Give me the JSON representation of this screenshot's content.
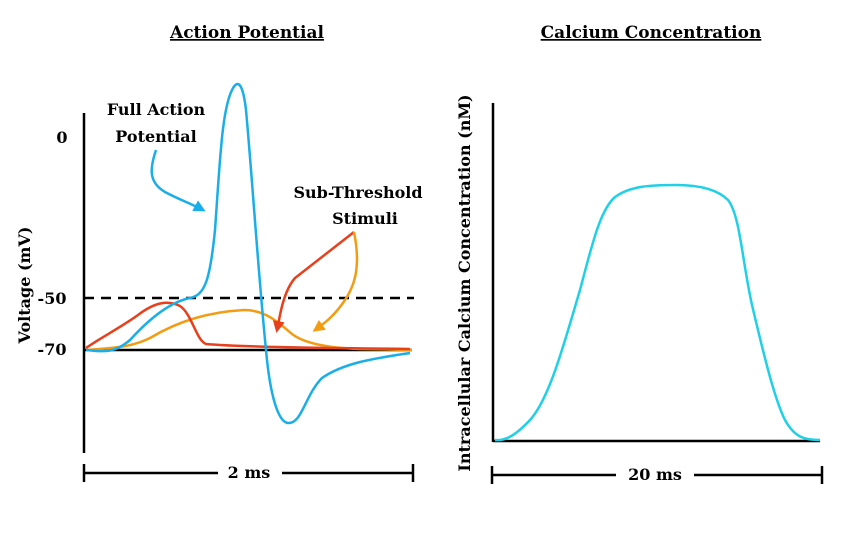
{
  "left_panel": {
    "title": "Action Potential",
    "y_axis_label": "Voltage (mV)",
    "ticks": [
      "0",
      "-50",
      "-70"
    ],
    "scale_bar_label": "2 ms",
    "annotation_full": [
      "Full Action",
      "Potential"
    ],
    "annotation_sub": [
      "Sub-Threshold",
      "Stimuli"
    ],
    "colors": {
      "full_ap": "#1aaee8",
      "sub_red": "#e8401c",
      "sub_orange": "#f39c12",
      "threshold": "#000000"
    }
  },
  "right_panel": {
    "title": "Calcium Concentration",
    "y_axis_label": "Intracellular Calcium Concentration (nM)",
    "scale_bar_label": "20 ms",
    "colors": {
      "calcium": "#1fd0e6"
    }
  }
}
